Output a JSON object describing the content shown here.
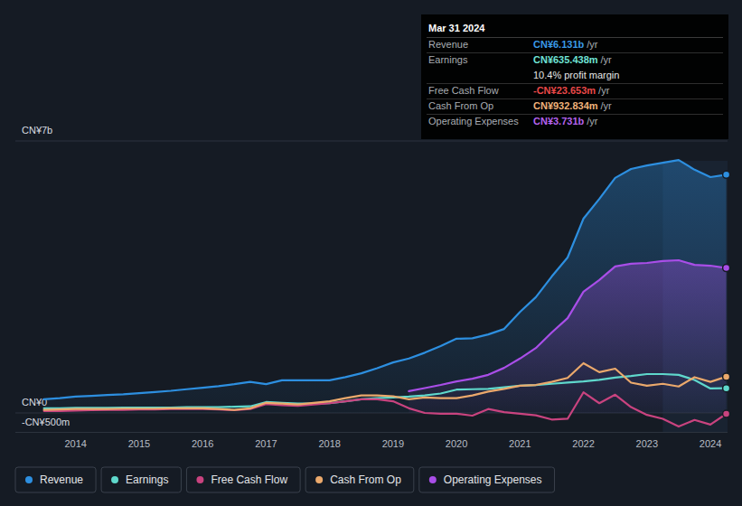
{
  "chart_data": {
    "type": "line",
    "x": [
      2013.5,
      2013.75,
      2014,
      2014.25,
      2014.5,
      2014.75,
      2015,
      2015.25,
      2015.5,
      2015.75,
      2016,
      2016.25,
      2016.5,
      2016.75,
      2017,
      2017.25,
      2017.5,
      2017.75,
      2018,
      2018.25,
      2018.5,
      2018.75,
      2019,
      2019.25,
      2019.5,
      2019.75,
      2020,
      2020.25,
      2020.5,
      2020.75,
      2021,
      2021.25,
      2021.5,
      2021.75,
      2022,
      2022.25,
      2022.5,
      2022.75,
      2023,
      2023.25,
      2023.5,
      2023.75,
      2024,
      2024.25
    ],
    "xlim": [
      2013.05,
      2024.27
    ],
    "xticks": [
      2014,
      2015,
      2016,
      2017,
      2018,
      2019,
      2020,
      2021,
      2022,
      2023,
      2024
    ],
    "ylim": [
      -0.5,
      7
    ],
    "yticks": [
      {
        "value": -0.5,
        "label": "-CN¥500m"
      },
      {
        "value": 0,
        "label": "CN¥0"
      },
      {
        "value": 7,
        "label": "CN¥7b"
      }
    ],
    "grid": true,
    "legend": "bottom left",
    "series": [
      {
        "name": "Revenue",
        "color": "#2d8fe0",
        "type": "area",
        "values": [
          0.35,
          0.38,
          0.42,
          0.44,
          0.46,
          0.48,
          0.51,
          0.54,
          0.57,
          0.61,
          0.65,
          0.69,
          0.74,
          0.8,
          0.74,
          0.84,
          0.84,
          0.84,
          0.84,
          0.92,
          1.02,
          1.15,
          1.3,
          1.4,
          1.55,
          1.72,
          1.91,
          1.92,
          2.02,
          2.16,
          2.6,
          2.98,
          3.51,
          4.0,
          5.0,
          5.51,
          6.05,
          6.28,
          6.37,
          6.44,
          6.51,
          6.26,
          6.07,
          6.131
        ]
      },
      {
        "name": "Earnings",
        "color": "#5fd8cc",
        "type": "line",
        "values": [
          0.12,
          0.12,
          0.13,
          0.13,
          0.13,
          0.14,
          0.14,
          0.14,
          0.14,
          0.15,
          0.15,
          0.15,
          0.16,
          0.17,
          0.28,
          0.26,
          0.24,
          0.24,
          0.25,
          0.3,
          0.35,
          0.38,
          0.4,
          0.42,
          0.45,
          0.5,
          0.6,
          0.61,
          0.62,
          0.66,
          0.7,
          0.72,
          0.75,
          0.78,
          0.81,
          0.85,
          0.91,
          0.95,
          1.0,
          1.0,
          0.98,
          0.85,
          0.63,
          0.635
        ]
      },
      {
        "name": "Free Cash Flow",
        "color": "#c9437f",
        "type": "line",
        "values": [
          0.05,
          0.05,
          0.06,
          0.07,
          0.08,
          0.08,
          0.09,
          0.09,
          0.1,
          0.1,
          0.1,
          0.09,
          0.07,
          0.1,
          0.23,
          0.2,
          0.18,
          0.22,
          0.25,
          0.3,
          0.35,
          0.35,
          0.3,
          0.12,
          0.0,
          -0.02,
          -0.02,
          -0.07,
          0.1,
          0.02,
          -0.02,
          -0.06,
          -0.17,
          -0.15,
          0.53,
          0.25,
          0.47,
          0.15,
          -0.05,
          -0.15,
          -0.35,
          -0.18,
          -0.3,
          -0.024
        ]
      },
      {
        "name": "Cash From Op",
        "color": "#eba96c",
        "type": "line",
        "values": [
          0.08,
          0.09,
          0.1,
          0.1,
          0.1,
          0.11,
          0.11,
          0.11,
          0.12,
          0.12,
          0.12,
          0.1,
          0.08,
          0.12,
          0.26,
          0.24,
          0.22,
          0.26,
          0.3,
          0.38,
          0.45,
          0.45,
          0.43,
          0.35,
          0.4,
          0.38,
          0.38,
          0.45,
          0.55,
          0.62,
          0.7,
          0.72,
          0.8,
          0.9,
          1.28,
          1.05,
          1.14,
          0.78,
          0.7,
          0.75,
          0.68,
          0.92,
          0.8,
          0.933
        ]
      },
      {
        "name": "Operating Expenses",
        "color": "#a94ee8",
        "type": "area",
        "values": [
          null,
          null,
          null,
          null,
          null,
          null,
          null,
          null,
          null,
          null,
          null,
          null,
          null,
          null,
          null,
          null,
          null,
          null,
          null,
          null,
          null,
          null,
          null,
          0.56,
          0.64,
          0.72,
          0.81,
          0.88,
          0.98,
          1.16,
          1.4,
          1.67,
          2.07,
          2.44,
          3.12,
          3.42,
          3.77,
          3.84,
          3.86,
          3.91,
          3.93,
          3.81,
          3.79,
          3.731
        ]
      }
    ],
    "tooltip": {
      "date": "Mar 31 2024",
      "rows": [
        {
          "label": "Revenue",
          "value": "CN¥6.131b",
          "unit": "/yr",
          "color": "#3a9ae8"
        },
        {
          "label": "Earnings",
          "value": "CN¥635.438m",
          "unit": "/yr",
          "color": "#6fe3d6"
        },
        {
          "value": "10.4% profit margin",
          "color": "#e6e6e6"
        },
        {
          "label": "Free Cash Flow",
          "value": "-CN¥23.653m",
          "unit": "/yr",
          "color": "#e84848"
        },
        {
          "label": "Cash From Op",
          "value": "CN¥932.834m",
          "unit": "/yr",
          "color": "#f0b27a"
        },
        {
          "label": "Operating Expenses",
          "value": "CN¥3.731b",
          "unit": "/yr",
          "color": "#b563f0"
        }
      ]
    }
  }
}
